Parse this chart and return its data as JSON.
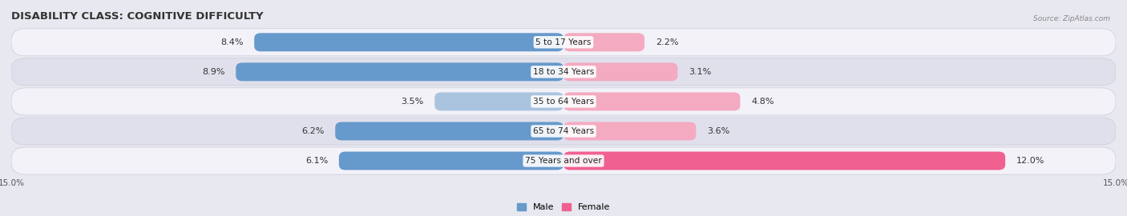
{
  "title": "DISABILITY CLASS: COGNITIVE DIFFICULTY",
  "source": "Source: ZipAtlas.com",
  "categories": [
    "5 to 17 Years",
    "18 to 34 Years",
    "35 to 64 Years",
    "65 to 74 Years",
    "75 Years and over"
  ],
  "male_values": [
    8.4,
    8.9,
    3.5,
    6.2,
    6.1
  ],
  "female_values": [
    2.2,
    3.1,
    4.8,
    3.6,
    12.0
  ],
  "max_val": 15.0,
  "male_color_dark": "#6699cc",
  "male_color_light": "#aac4e0",
  "female_color_dark": "#f06090",
  "female_color_light": "#f4aac0",
  "male_label": "Male",
  "female_label": "Female",
  "bg_color": "#e8e8f0",
  "row_bg_light": "#f2f2f8",
  "row_bg_dark": "#e0e0ec",
  "title_fontsize": 9.5,
  "label_fontsize": 8.0,
  "axis_label_fontsize": 7.5
}
